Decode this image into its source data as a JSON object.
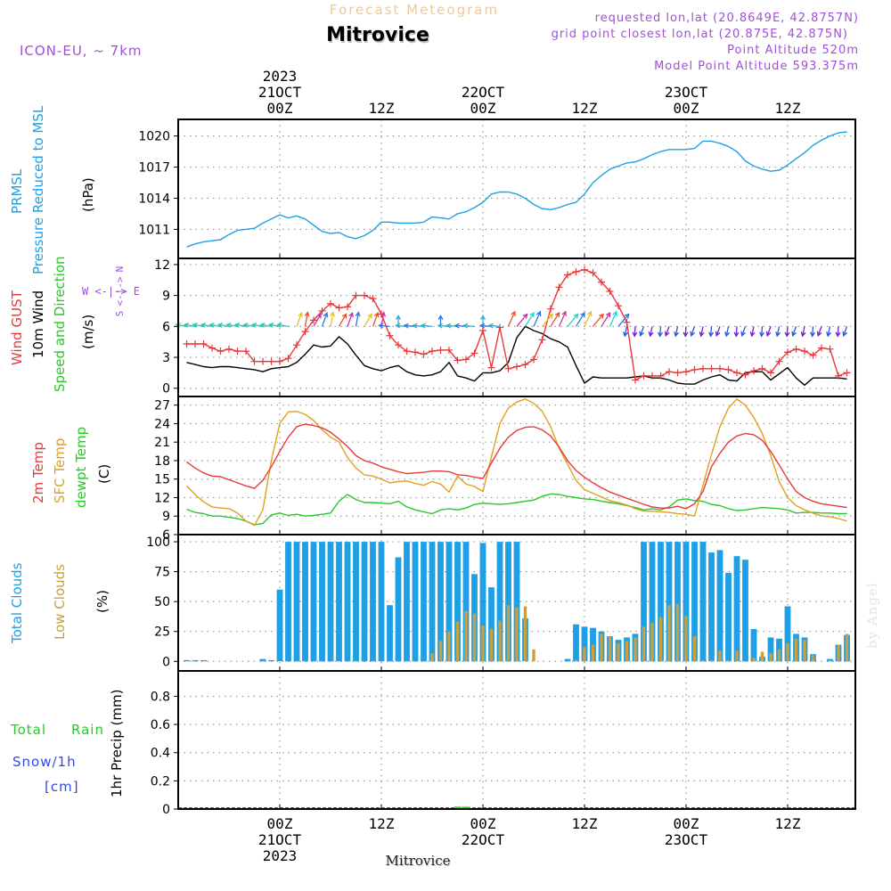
{
  "header": {
    "top_title": "Forecast Meteogram",
    "location": "Mitrovice",
    "model": "ICON-EU, ~ 7km",
    "requested": "requested lon,lat (20.8649E, 42.8757N)",
    "grid_point": "grid point closest lon,lat (20.875E, 42.875N)",
    "point_altitude": "Point Altitude 520m",
    "model_altitude": "Model Point Altitude 593.375m",
    "watermark": "by Angel",
    "footer_location": "Mitrovice"
  },
  "time_axis": {
    "top_labels": [
      {
        "hour": 12,
        "lines": [
          "2023",
          "21OCT",
          "00Z"
        ]
      },
      {
        "hour": 24,
        "lines": [
          "12Z"
        ]
      },
      {
        "hour": 36,
        "lines": [
          "22OCT",
          "00Z"
        ]
      },
      {
        "hour": 48,
        "lines": [
          "12Z"
        ]
      },
      {
        "hour": 60,
        "lines": [
          "23OCT",
          "00Z"
        ]
      },
      {
        "hour": 72,
        "lines": [
          "12Z"
        ]
      }
    ],
    "bottom_labels": [
      {
        "hour": 12,
        "lines": [
          "00Z",
          "21OCT",
          "2023"
        ]
      },
      {
        "hour": 24,
        "lines": [
          "12Z"
        ]
      },
      {
        "hour": 36,
        "lines": [
          "00Z",
          "22OCT"
        ]
      },
      {
        "hour": 48,
        "lines": [
          "12Z"
        ]
      },
      {
        "hour": 60,
        "lines": [
          "00Z",
          "23OCT"
        ]
      },
      {
        "hour": 72,
        "lines": [
          "12Z"
        ]
      }
    ]
  },
  "panel_labels": {
    "pressure": {
      "line1": "PRMSL",
      "line2": "Pressure Reduced to MSL",
      "unit": "(hPa)"
    },
    "wind": {
      "gust": "Wind GUST",
      "wind10": "10m Wind",
      "speed_dir": "Speed and Direction",
      "unit": "(m/s)",
      "compass_we": "W <-|-> E",
      "compass_n": "N",
      "compass_s": "S",
      "compass_arrows_top": "<-|->"
    },
    "temp": {
      "t2m": "2m Temp",
      "sfc": "SFC Temp",
      "dewpt": "dewpt Temp",
      "unit": "(C)"
    },
    "clouds": {
      "total": "Total Clouds",
      "low": "Low Clouds",
      "unit": "(%)"
    },
    "precip": {
      "total": "Total",
      "rain": "Rain",
      "snow": "Snow/1h",
      "cm": "[cm]",
      "unit": "1hr Precip (mm)"
    }
  },
  "colors": {
    "pressure": "#1ea0e6",
    "gust": "#e8383c",
    "wind10": "#000000",
    "temp2m": "#e8383c",
    "sfc": "#e0a020",
    "dewpt": "#28c828",
    "total_clouds": "#1ea0e6",
    "low_clouds": "#c8a040",
    "label_purple": "#a050d8",
    "label_green": "#28c828",
    "label_blue": "#3048e8",
    "title_orange": "#f0c898"
  },
  "chart_data": [
    {
      "type": "line",
      "id": "pressure",
      "ylabel": "(hPa)",
      "ylim": [
        1008.2,
        1021.6
      ],
      "yticks": [
        1011,
        1014,
        1017,
        1020
      ],
      "grid": true,
      "x": [
        1,
        2,
        3,
        4,
        5,
        6,
        7,
        8,
        9,
        10,
        11,
        12,
        13,
        14,
        15,
        16,
        17,
        18,
        19,
        20,
        21,
        22,
        23,
        24,
        25,
        26,
        27,
        28,
        29,
        30,
        31,
        32,
        33,
        34,
        35,
        36,
        37,
        38,
        39,
        40,
        41,
        42,
        43,
        44,
        45,
        46,
        47,
        48,
        49,
        50,
        51,
        52,
        53,
        54,
        55,
        56,
        57,
        58,
        59,
        60,
        61,
        62,
        63,
        64,
        65,
        66,
        67,
        68,
        69,
        70,
        71,
        72,
        73,
        74,
        75,
        76,
        77,
        78,
        79
      ],
      "series": [
        {
          "name": "PRMSL",
          "values": [
            1009.3,
            1009.6,
            1009.8,
            1009.9,
            1010.0,
            1010.5,
            1010.9,
            1011.0,
            1011.1,
            1011.6,
            1012.0,
            1012.4,
            1012.1,
            1012.3,
            1012.0,
            1011.4,
            1010.8,
            1010.6,
            1010.7,
            1010.3,
            1010.1,
            1010.4,
            1010.9,
            1011.7,
            1011.7,
            1011.6,
            1011.6,
            1011.6,
            1011.7,
            1012.2,
            1012.1,
            1012.0,
            1012.5,
            1012.7,
            1013.1,
            1013.6,
            1014.4,
            1014.6,
            1014.6,
            1014.4,
            1014.0,
            1013.4,
            1013.0,
            1012.9,
            1013.1,
            1013.4,
            1013.6,
            1014.4,
            1015.5,
            1016.2,
            1016.8,
            1017.1,
            1017.4,
            1017.5,
            1017.8,
            1018.2,
            1018.5,
            1018.7,
            1018.7,
            1018.7,
            1018.8,
            1019.5,
            1019.5,
            1019.3,
            1019.0,
            1018.5,
            1017.6,
            1017.1,
            1016.8,
            1016.6,
            1016.7,
            1017.2,
            1017.8,
            1018.4,
            1019.1,
            1019.6,
            1020.0,
            1020.3,
            1020.4
          ]
        }
      ]
    },
    {
      "type": "line",
      "id": "wind",
      "ylabel": "(m/s)",
      "ylim": [
        -0.8,
        12.6
      ],
      "yticks": [
        0,
        3,
        6,
        9,
        12
      ],
      "grid": true,
      "x": [
        1,
        2,
        3,
        4,
        5,
        6,
        7,
        8,
        9,
        10,
        11,
        12,
        13,
        14,
        15,
        16,
        17,
        18,
        19,
        20,
        21,
        22,
        23,
        24,
        25,
        26,
        27,
        28,
        29,
        30,
        31,
        32,
        33,
        34,
        35,
        36,
        37,
        38,
        39,
        40,
        41,
        42,
        43,
        44,
        45,
        46,
        47,
        48,
        49,
        50,
        51,
        52,
        53,
        54,
        55,
        56,
        57,
        58,
        59,
        60,
        61,
        62,
        63,
        64,
        65,
        66,
        67,
        68,
        69,
        70,
        71,
        72,
        73,
        74,
        75,
        76,
        77,
        78,
        79
      ],
      "series": [
        {
          "name": "Wind GUST",
          "values": [
            4.3,
            4.3,
            4.3,
            3.9,
            3.6,
            3.8,
            3.6,
            3.6,
            2.6,
            2.6,
            2.6,
            2.6,
            2.9,
            4.2,
            5.5,
            6.6,
            7.5,
            8.2,
            7.8,
            7.9,
            9.0,
            9.0,
            8.7,
            7.2,
            5.1,
            4.2,
            3.6,
            3.5,
            3.3,
            3.6,
            3.7,
            3.7,
            2.7,
            2.8,
            3.4,
            5.6,
            2.0,
            5.9,
            1.9,
            2.1,
            2.3,
            2.8,
            4.7,
            7.7,
            9.8,
            11.0,
            11.3,
            11.5,
            11.2,
            10.3,
            9.4,
            8.0,
            6.4,
            0.8,
            1.2,
            1.2,
            1.2,
            1.6,
            1.5,
            1.6,
            1.8,
            1.9,
            1.9,
            1.9,
            1.8,
            1.5,
            1.3,
            1.7,
            1.9,
            1.5,
            2.6,
            3.5,
            3.8,
            3.6,
            3.2,
            3.9,
            3.8,
            1.2,
            1.5
          ]
        },
        {
          "name": "10m Wind",
          "values": [
            2.5,
            2.3,
            2.1,
            2.0,
            2.1,
            2.1,
            2.0,
            1.9,
            1.8,
            1.6,
            1.9,
            2.0,
            2.1,
            2.5,
            3.3,
            4.2,
            4.0,
            4.1,
            5.0,
            4.3,
            3.2,
            2.2,
            1.9,
            1.7,
            2.0,
            2.2,
            1.6,
            1.3,
            1.2,
            1.3,
            1.6,
            2.5,
            1.2,
            1.0,
            0.7,
            1.5,
            1.5,
            1.7,
            2.5,
            4.9,
            6.0,
            5.6,
            5.3,
            4.8,
            4.5,
            4.0,
            2.2,
            0.5,
            1.1,
            1.0,
            1.0,
            1.0,
            1.0,
            1.1,
            1.2,
            1.0,
            1.0,
            0.8,
            0.5,
            0.4,
            0.4,
            0.8,
            1.1,
            1.3,
            0.8,
            0.7,
            1.5,
            1.6,
            1.6,
            0.8,
            1.4,
            2.0,
            1.0,
            0.3,
            1.0,
            1.0,
            1.0,
            1.0,
            0.9
          ]
        }
      ]
    },
    {
      "type": "line",
      "id": "temperature",
      "ylabel": "(C)",
      "ylim": [
        6,
        28.4
      ],
      "yticks": [
        6,
        9,
        12,
        15,
        18,
        21,
        24,
        27
      ],
      "grid": true,
      "x": [
        1,
        2,
        3,
        4,
        5,
        6,
        7,
        8,
        9,
        10,
        11,
        12,
        13,
        14,
        15,
        16,
        17,
        18,
        19,
        20,
        21,
        22,
        23,
        24,
        25,
        26,
        27,
        28,
        29,
        30,
        31,
        32,
        33,
        34,
        35,
        36,
        37,
        38,
        39,
        40,
        41,
        42,
        43,
        44,
        45,
        46,
        47,
        48,
        49,
        50,
        51,
        52,
        53,
        54,
        55,
        56,
        57,
        58,
        59,
        60,
        61,
        62,
        63,
        64,
        65,
        66,
        67,
        68,
        69,
        70,
        71,
        72,
        73,
        74,
        75,
        76,
        77,
        78,
        79
      ],
      "series": [
        {
          "name": "2m Temp",
          "values": [
            17.8,
            16.8,
            16.0,
            15.5,
            15.4,
            14.9,
            14.4,
            13.9,
            13.5,
            14.8,
            17.0,
            19.5,
            21.8,
            23.5,
            23.9,
            23.7,
            23.3,
            22.6,
            21.5,
            20.3,
            18.8,
            18.0,
            17.6,
            17.0,
            16.6,
            16.2,
            15.9,
            16.0,
            16.1,
            16.3,
            16.3,
            16.2,
            15.7,
            15.6,
            15.3,
            15.1,
            17.6,
            20.0,
            21.8,
            22.9,
            23.4,
            23.5,
            23.0,
            22.0,
            20.2,
            18.0,
            16.4,
            15.3,
            14.4,
            13.6,
            12.9,
            12.4,
            11.9,
            11.4,
            10.9,
            10.5,
            10.3,
            10.3,
            10.6,
            10.2,
            11.0,
            13.0,
            17.0,
            19.2,
            21.0,
            22.0,
            22.4,
            22.2,
            21.3,
            19.5,
            17.3,
            15.0,
            13.0,
            12.0,
            11.4,
            11.0,
            10.8,
            10.6,
            10.4
          ]
        },
        {
          "name": "SFC Temp",
          "values": [
            13.9,
            12.5,
            11.3,
            10.5,
            10.3,
            10.2,
            9.5,
            8.2,
            7.5,
            10.0,
            18.0,
            24.0,
            25.9,
            26.0,
            25.5,
            24.5,
            23.0,
            21.8,
            21.0,
            18.5,
            16.8,
            15.7,
            15.5,
            15.0,
            14.4,
            14.6,
            14.7,
            14.3,
            14.0,
            14.6,
            14.2,
            12.9,
            15.5,
            14.2,
            13.8,
            13.0,
            18.6,
            24.0,
            26.5,
            27.5,
            28.0,
            27.3,
            26.0,
            23.5,
            20.0,
            17.4,
            14.8,
            13.3,
            12.7,
            12.1,
            11.5,
            11.2,
            10.8,
            10.2,
            9.8,
            9.8,
            9.7,
            9.6,
            9.4,
            9.3,
            9.0,
            14.0,
            19.0,
            23.5,
            26.5,
            28.0,
            27.0,
            25.0,
            22.4,
            18.8,
            14.6,
            12.0,
            10.7,
            10.0,
            9.5,
            9.0,
            8.9,
            8.6,
            8.2
          ]
        },
        {
          "name": "dewpt Temp",
          "values": [
            10.1,
            9.6,
            9.4,
            9.0,
            9.0,
            8.8,
            8.6,
            8.2,
            7.6,
            7.8,
            9.2,
            9.5,
            9.1,
            9.3,
            9.0,
            9.1,
            9.3,
            9.5,
            11.4,
            12.5,
            11.7,
            11.2,
            11.2,
            11.1,
            11.0,
            11.4,
            10.5,
            10.0,
            9.7,
            9.4,
            10.0,
            10.2,
            10.0,
            10.3,
            10.9,
            11.1,
            11.0,
            10.9,
            11.0,
            11.2,
            11.4,
            11.6,
            12.2,
            12.6,
            12.5,
            12.2,
            12.0,
            11.8,
            11.7,
            11.4,
            11.2,
            11.0,
            10.7,
            10.4,
            10.0,
            10.2,
            10.0,
            10.5,
            11.6,
            11.8,
            11.5,
            11.4,
            10.9,
            10.7,
            10.2,
            9.9,
            10.0,
            10.2,
            10.4,
            10.3,
            10.2,
            10.0,
            9.5,
            9.6,
            9.6,
            9.5,
            9.5,
            9.4,
            9.4
          ]
        }
      ]
    },
    {
      "type": "bar",
      "id": "clouds",
      "ylabel": "(%)",
      "ylim": [
        -8,
        106
      ],
      "yticks": [
        0,
        25,
        50,
        75,
        100
      ],
      "grid": true,
      "x": [
        1,
        2,
        3,
        4,
        5,
        6,
        7,
        8,
        9,
        10,
        11,
        12,
        13,
        14,
        15,
        16,
        17,
        18,
        19,
        20,
        21,
        22,
        23,
        24,
        25,
        26,
        27,
        28,
        29,
        30,
        31,
        32,
        33,
        34,
        35,
        36,
        37,
        38,
        39,
        40,
        41,
        42,
        43,
        44,
        45,
        46,
        47,
        48,
        49,
        50,
        51,
        52,
        53,
        54,
        55,
        56,
        57,
        58,
        59,
        60,
        61,
        62,
        63,
        64,
        65,
        66,
        67,
        68,
        69,
        70,
        71,
        72,
        73,
        74,
        75,
        76,
        77,
        78,
        79
      ],
      "series": [
        {
          "name": "Total Clouds",
          "values": [
            1,
            1,
            1,
            0,
            0,
            0,
            0,
            0,
            0,
            2,
            1,
            60,
            100,
            100,
            100,
            100,
            100,
            100,
            100,
            100,
            100,
            100,
            100,
            100,
            47,
            87,
            100,
            100,
            100,
            100,
            100,
            100,
            100,
            100,
            73,
            99,
            62,
            100,
            100,
            100,
            36,
            0,
            0,
            0,
            0,
            2,
            31,
            29,
            28,
            25,
            21,
            18,
            20,
            23,
            100,
            100,
            100,
            100,
            100,
            100,
            100,
            100,
            91,
            93,
            74,
            88,
            85,
            27,
            4,
            20,
            19,
            46,
            23,
            20,
            6,
            0,
            2,
            14,
            22
          ]
        },
        {
          "name": "Low Clouds",
          "values": [
            0,
            0,
            0,
            0,
            0,
            0,
            0,
            0,
            0,
            0,
            0,
            0,
            0,
            0,
            0,
            0,
            0,
            0,
            0,
            0,
            0,
            0,
            0,
            0,
            0,
            0,
            0,
            0,
            0,
            7,
            17,
            25,
            33,
            42,
            40,
            30,
            27,
            34,
            47,
            45,
            46,
            10,
            0,
            0,
            0,
            0,
            1,
            12,
            14,
            23,
            21,
            15,
            17,
            20,
            29,
            32,
            37,
            47,
            48,
            38,
            21,
            1,
            1,
            9,
            1,
            9,
            0,
            3,
            8,
            7,
            10,
            15,
            19,
            18,
            5,
            0,
            1,
            14,
            23
          ]
        }
      ]
    },
    {
      "type": "bar",
      "id": "precip",
      "ylabel": "1hr Precip (mm)",
      "ylim": [
        0,
        0.98
      ],
      "yticks": [
        0,
        0.2,
        0.4,
        0.6,
        0.8
      ],
      "grid": true,
      "x": [
        33,
        34
      ],
      "series": [
        {
          "name": "Total Rain",
          "values": [
            0.01,
            0.01
          ]
        }
      ]
    }
  ]
}
